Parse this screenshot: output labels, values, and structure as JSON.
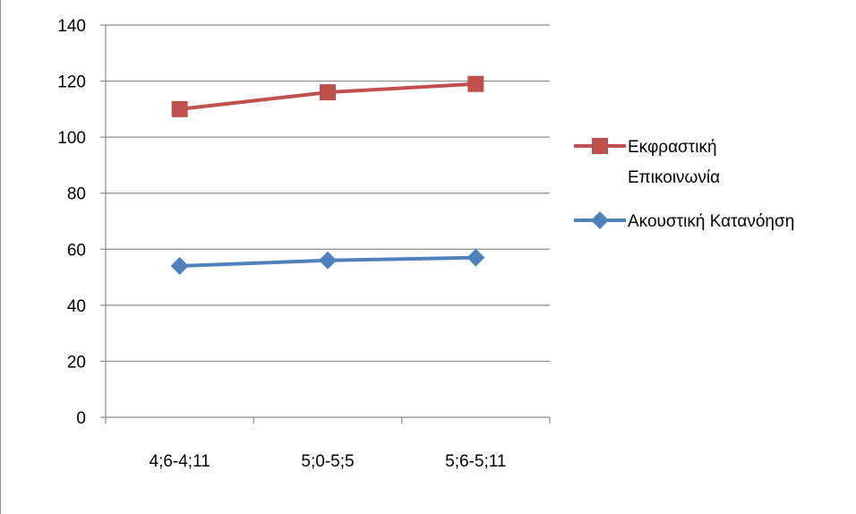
{
  "chart_data": {
    "type": "line",
    "categories": [
      "4;6-4;11",
      "5;0-5;5",
      "5;6-5;11"
    ],
    "series": [
      {
        "name": "Εκφραστική Επικοινωνία",
        "name_lines": [
          "Εκφραστική",
          "Επικοινωνία"
        ],
        "values": [
          110,
          116,
          119
        ],
        "color": "#c0504d",
        "marker": "square"
      },
      {
        "name": "Ακουστική Κατανόηση",
        "name_lines": [
          "Ακουστική Κατανόηση"
        ],
        "values": [
          54,
          56,
          57
        ],
        "color": "#4f81bd",
        "marker": "diamond"
      }
    ],
    "ylim": [
      0,
      140
    ],
    "yticks": [
      0,
      20,
      40,
      60,
      80,
      100,
      120,
      140
    ],
    "grid": true,
    "legend_position": "right"
  }
}
